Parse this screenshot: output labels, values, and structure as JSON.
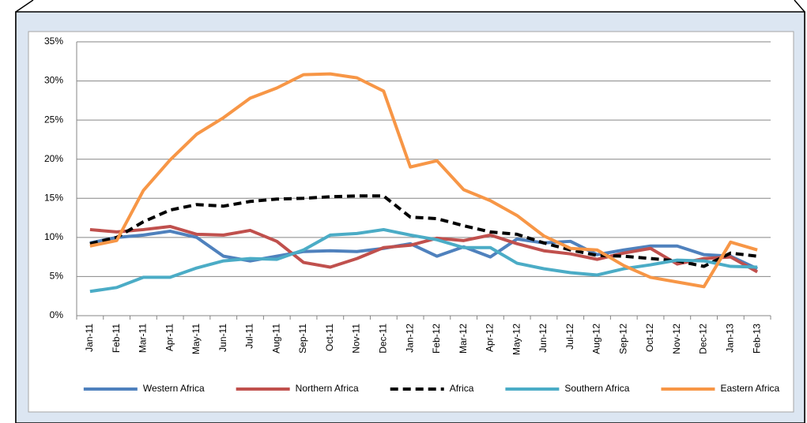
{
  "chart_data": {
    "type": "line",
    "categories": [
      "Jan-11",
      "Feb-11",
      "Mar-11",
      "Apr-11",
      "May-11",
      "Jun-11",
      "Jul-11",
      "Aug-11",
      "Sep-11",
      "Oct-11",
      "Nov-11",
      "Dec-11",
      "Jan-12",
      "Feb-12",
      "Mar-12",
      "Apr-12",
      "May-12",
      "Jun-12",
      "Jul-12",
      "Aug-12",
      "Sep-12",
      "Oct-12",
      "Nov-12",
      "Dec-12",
      "Jan-13",
      "Feb-13"
    ],
    "series": [
      {
        "name": "Western Africa",
        "color": "#4f81bd",
        "values": [
          9.3,
          10.0,
          10.3,
          10.8,
          10.0,
          7.6,
          7.0,
          7.6,
          8.2,
          8.3,
          8.2,
          8.6,
          9.2,
          7.6,
          8.8,
          7.5,
          9.8,
          9.3,
          9.5,
          7.8,
          8.4,
          8.9,
          8.9,
          7.8,
          7.6,
          6.0
        ]
      },
      {
        "name": "Northern Africa",
        "color": "#c0504d",
        "values": [
          11.0,
          10.7,
          11.0,
          11.4,
          10.4,
          10.3,
          10.9,
          9.5,
          6.8,
          6.2,
          7.3,
          8.7,
          9.0,
          9.9,
          9.6,
          10.3,
          9.2,
          8.3,
          7.9,
          7.2,
          8.0,
          8.6,
          6.6,
          7.3,
          7.5,
          5.6
        ]
      },
      {
        "name": "Africa",
        "color": "#000000",
        "dashed": true,
        "values": [
          9.2,
          10.0,
          12.0,
          13.5,
          14.2,
          14.0,
          14.6,
          14.9,
          15.0,
          15.2,
          15.3,
          15.3,
          12.6,
          12.4,
          11.5,
          10.7,
          10.4,
          9.3,
          8.4,
          7.7,
          7.6,
          7.3,
          7.0,
          6.3,
          8.0,
          7.6
        ]
      },
      {
        "name": "Southern Africa",
        "color": "#4bacc6",
        "values": [
          3.1,
          3.6,
          4.9,
          4.9,
          6.1,
          7.0,
          7.3,
          7.2,
          8.4,
          10.3,
          10.5,
          11.0,
          10.3,
          9.7,
          8.7,
          8.7,
          6.7,
          6.0,
          5.5,
          5.2,
          6.0,
          6.5,
          7.1,
          7.0,
          6.3,
          6.2
        ]
      },
      {
        "name": "Eastern Africa",
        "color": "#f79646",
        "values": [
          8.9,
          9.6,
          16.0,
          19.9,
          23.2,
          25.3,
          27.8,
          29.1,
          30.8,
          30.9,
          30.4,
          28.7,
          19.0,
          19.8,
          16.1,
          14.7,
          12.8,
          10.2,
          8.6,
          8.4,
          6.4,
          4.9,
          4.3,
          3.7,
          9.4,
          8.4
        ]
      }
    ],
    "ylim": [
      0,
      35
    ],
    "yticks": [
      {
        "value": 0,
        "label": "0%"
      },
      {
        "value": 5,
        "label": "5%"
      },
      {
        "value": 10,
        "label": "10%"
      },
      {
        "value": 15,
        "label": "15%"
      },
      {
        "value": 20,
        "label": "20%"
      },
      {
        "value": 25,
        "label": "25%"
      },
      {
        "value": 30,
        "label": "30%"
      },
      {
        "value": 35,
        "label": "35%"
      }
    ],
    "grid": true,
    "legend": "bottom"
  }
}
